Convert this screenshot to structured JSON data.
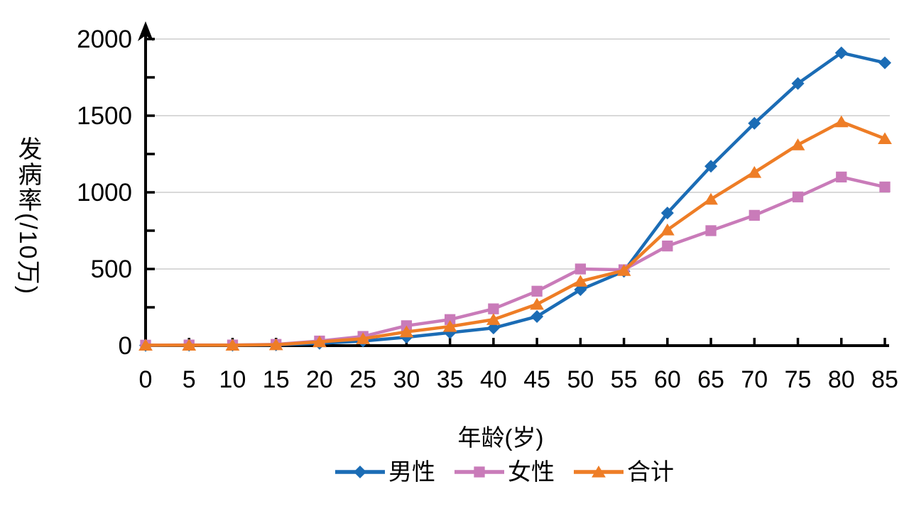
{
  "chart_data": {
    "type": "line",
    "x": [
      0,
      5,
      10,
      15,
      20,
      25,
      30,
      35,
      40,
      45,
      50,
      55,
      60,
      65,
      70,
      75,
      80,
      85
    ],
    "xlabel": "年龄(岁)",
    "ylabel": "发病率(/10万)",
    "ylim": [
      0,
      2000
    ],
    "y_ticks": [
      0,
      500,
      1000,
      1500,
      2000
    ],
    "y_minor_tick_step": 250,
    "grid": "horizontal",
    "legend_position": "bottom",
    "axis_color": "#000000",
    "grid_color": "#D9D9D9",
    "series": [
      {
        "name": "男性",
        "marker": "diamond",
        "color": "#1B6CB5",
        "values": [
          2,
          3,
          3,
          5,
          15,
          30,
          55,
          85,
          115,
          190,
          365,
          485,
          865,
          1170,
          1450,
          1710,
          1910,
          1845
        ]
      },
      {
        "name": "女性",
        "marker": "square",
        "color": "#C97BB9",
        "values": [
          3,
          4,
          4,
          8,
          30,
          60,
          130,
          170,
          240,
          355,
          500,
          495,
          650,
          750,
          850,
          970,
          1100,
          1035
        ]
      },
      {
        "name": "合计",
        "marker": "triangle",
        "color": "#EE7D26",
        "values": [
          3,
          3,
          3,
          6,
          25,
          45,
          90,
          125,
          170,
          270,
          420,
          490,
          755,
          955,
          1130,
          1310,
          1460,
          1350
        ]
      }
    ]
  }
}
